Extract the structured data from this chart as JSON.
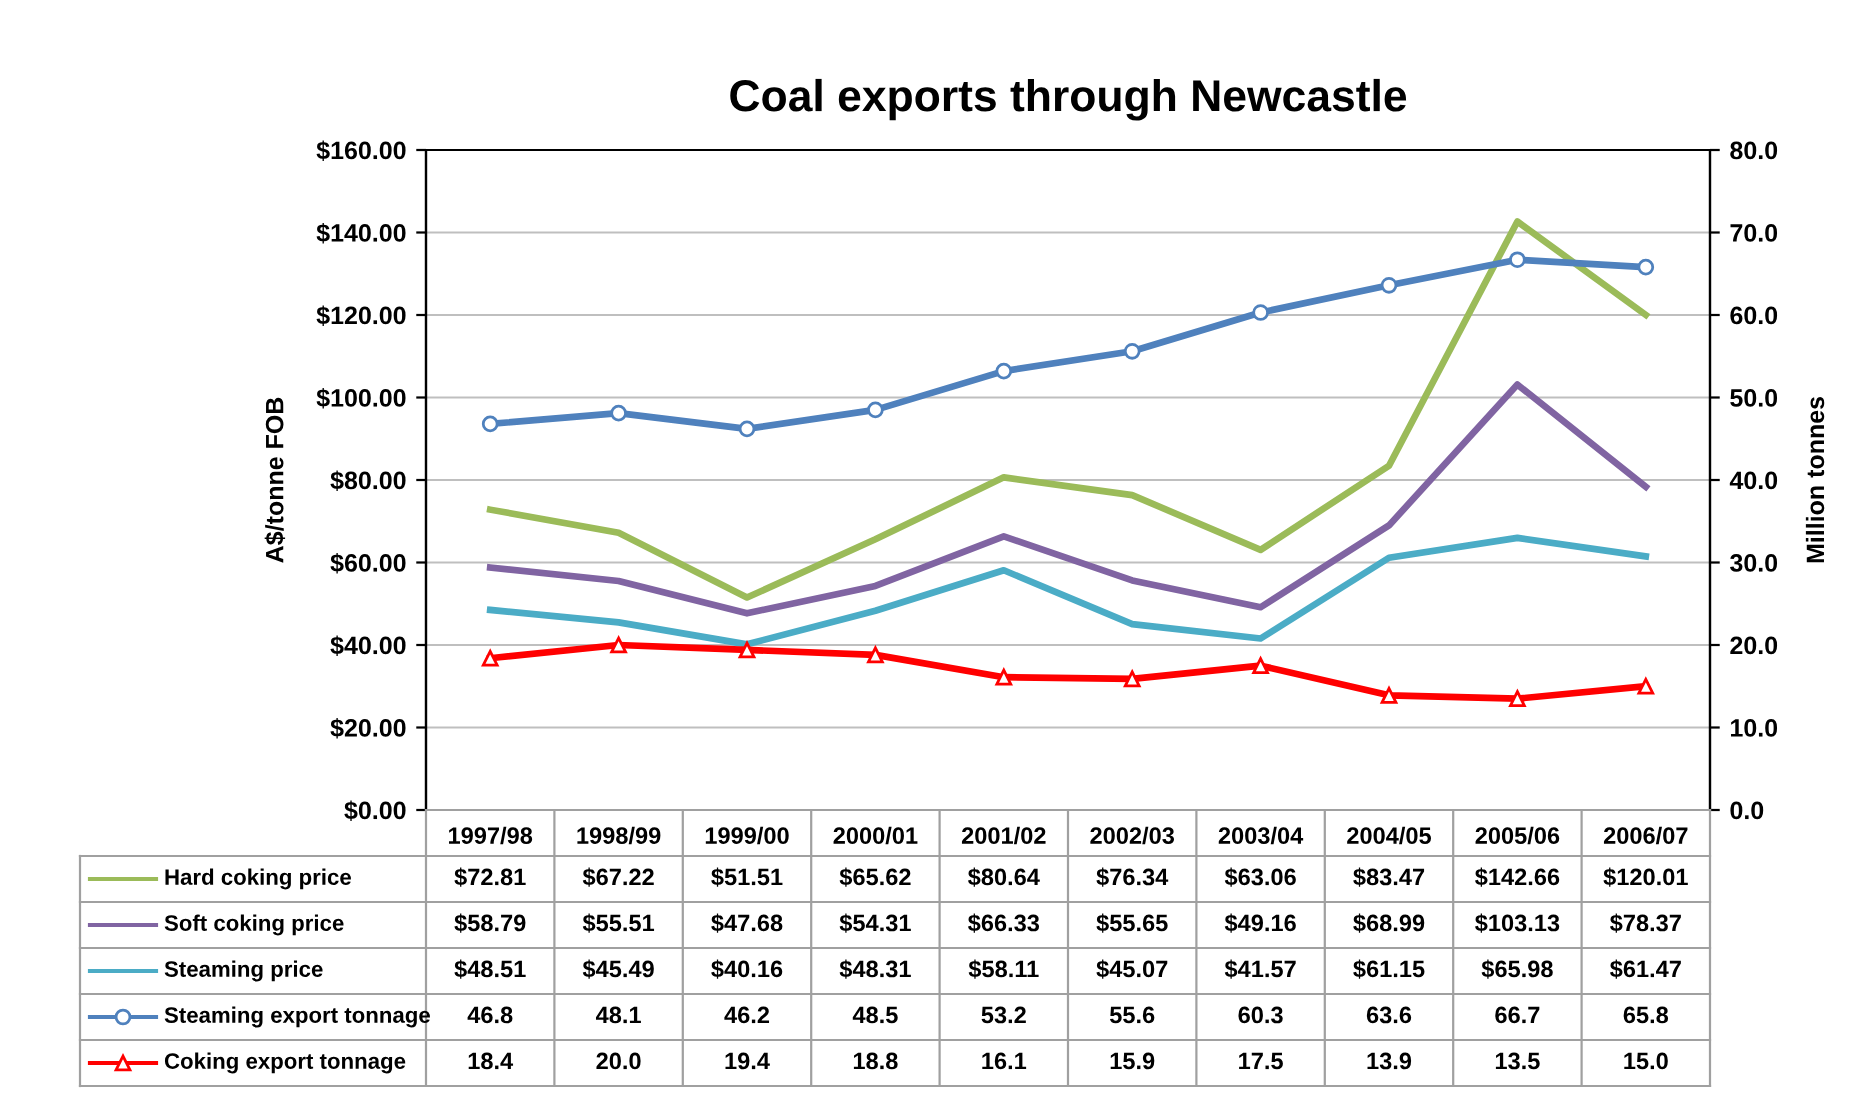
{
  "chart_data": {
    "type": "line",
    "title": "Coal exports through Newcastle",
    "ylabel": "A$/tonne FOB",
    "y2label": "Million tonnes",
    "categories": [
      "1997/98",
      "1998/99",
      "1999/00",
      "2000/01",
      "2001/02",
      "2002/03",
      "2003/04",
      "2004/05",
      "2005/06",
      "2006/07"
    ],
    "ylim": [
      0,
      160
    ],
    "yticks": [
      {
        "value": 0,
        "label": "$0.00"
      },
      {
        "value": 20,
        "label": "$20.00"
      },
      {
        "value": 40,
        "label": "$40.00"
      },
      {
        "value": 60,
        "label": "$60.00"
      },
      {
        "value": 80,
        "label": "$80.00"
      },
      {
        "value": 100,
        "label": "$100.00"
      },
      {
        "value": 120,
        "label": "$120.00"
      },
      {
        "value": 140,
        "label": "$140.00"
      },
      {
        "value": 160,
        "label": "$160.00"
      }
    ],
    "y2lim": [
      0,
      80
    ],
    "y2ticks": [
      {
        "value": 0,
        "label": "0.0"
      },
      {
        "value": 10,
        "label": "10.0"
      },
      {
        "value": 20,
        "label": "20.0"
      },
      {
        "value": 30,
        "label": "30.0"
      },
      {
        "value": 40,
        "label": "40.0"
      },
      {
        "value": 50,
        "label": "50.0"
      },
      {
        "value": 60,
        "label": "60.0"
      },
      {
        "value": 70,
        "label": "70.0"
      },
      {
        "value": 80,
        "label": "80.0"
      }
    ],
    "grid": "y",
    "legend": "bottom",
    "line_style": "solid",
    "series": [
      {
        "name": "Hard coking price",
        "color": "#9bbb59",
        "marker": "none",
        "values": [
          72.81,
          67.22,
          51.51,
          65.62,
          80.64,
          76.34,
          63.06,
          83.47,
          142.66,
          120.01
        ],
        "value_labels": [
          "$72.81",
          "$67.22",
          "$51.51",
          "$65.62",
          "$80.64",
          "$76.34",
          "$63.06",
          "$83.47",
          "$142.66",
          "$120.01"
        ]
      },
      {
        "name": "Soft coking price",
        "color": "#8064a2",
        "marker": "none",
        "values": [
          58.79,
          55.51,
          47.68,
          54.31,
          66.33,
          55.65,
          49.16,
          68.99,
          103.13,
          78.37
        ],
        "value_labels": [
          "$58.79",
          "$55.51",
          "$47.68",
          "$54.31",
          "$66.33",
          "$55.65",
          "$49.16",
          "$68.99",
          "$103.13",
          "$78.37"
        ]
      },
      {
        "name": "Steaming price",
        "color": "#4bacc6",
        "marker": "none",
        "values": [
          48.51,
          45.49,
          40.16,
          48.31,
          58.11,
          45.07,
          41.57,
          61.15,
          65.98,
          61.47
        ],
        "value_labels": [
          "$48.51",
          "$45.49",
          "$40.16",
          "$48.31",
          "$58.11",
          "$45.07",
          "$41.57",
          "$61.15",
          "$65.98",
          "$61.47"
        ]
      },
      {
        "name": "Steaming export tonnage",
        "color": "#4f81bd",
        "marker": "circle",
        "axis": "y2",
        "values": [
          46.8,
          48.1,
          46.2,
          48.5,
          53.2,
          55.6,
          60.3,
          63.6,
          66.7,
          65.8
        ],
        "value_labels": [
          "46.8",
          "48.1",
          "46.2",
          "48.5",
          "53.2",
          "55.6",
          "60.3",
          "63.6",
          "66.7",
          "65.8"
        ]
      },
      {
        "name": "Coking export tonnage",
        "color": "#ff0000",
        "marker": "triangle",
        "axis": "y2",
        "values": [
          18.4,
          20.0,
          19.4,
          18.8,
          16.1,
          15.9,
          17.5,
          13.9,
          13.5,
          15.0
        ],
        "value_labels": [
          "18.4",
          "20.0",
          "19.4",
          "18.8",
          "16.1",
          "15.9",
          "17.5",
          "13.9",
          "13.5",
          "15.0"
        ]
      }
    ]
  }
}
